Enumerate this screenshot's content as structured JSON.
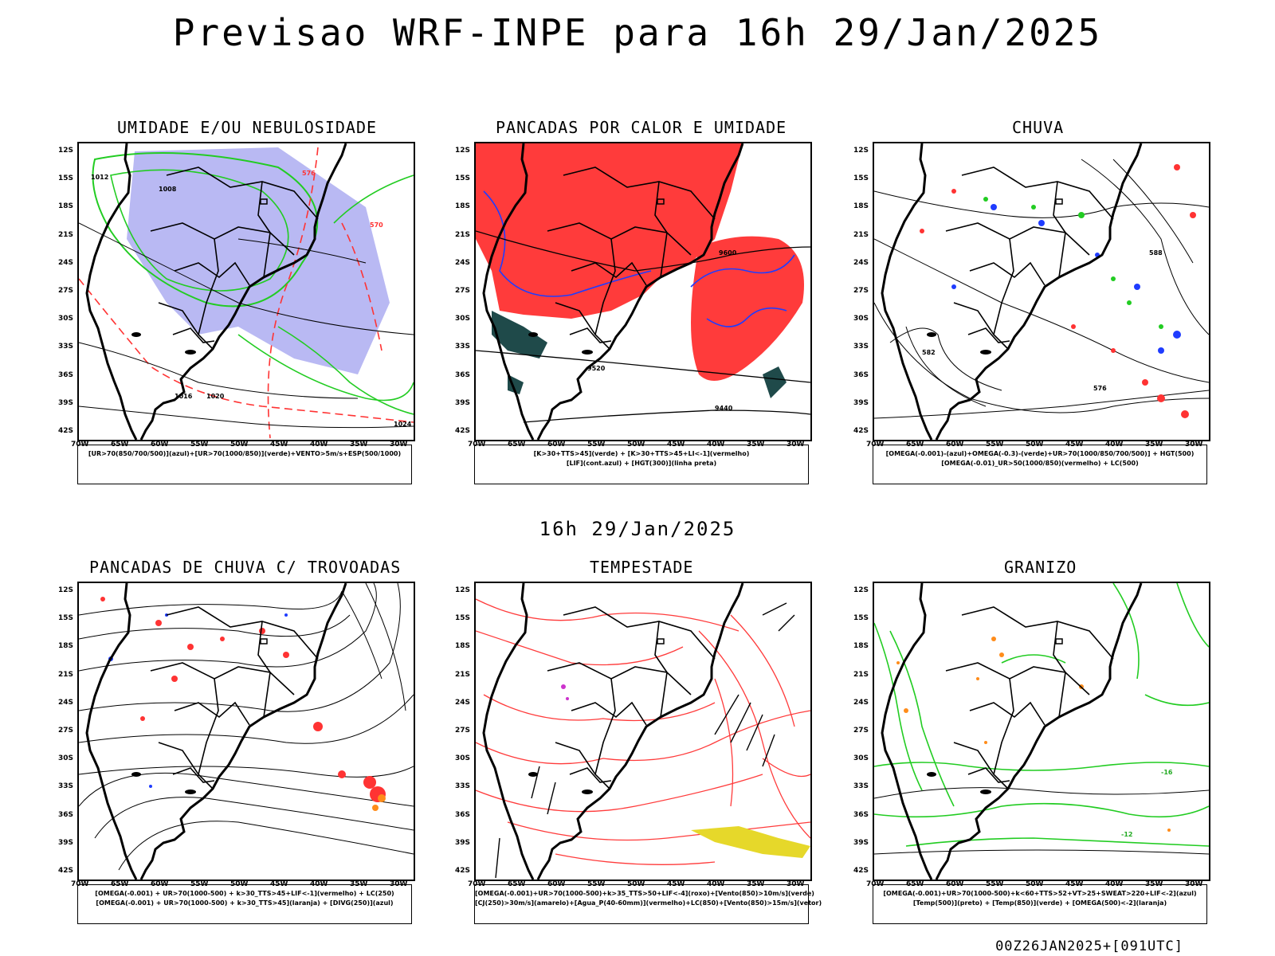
{
  "title": "Previsao WRF-INPE  para 16h 29/Jan/2025",
  "middle_date": "16h 29/Jan/2025",
  "run_stamp": "00Z26JAN2025+[091UTC]",
  "lat_labels": [
    "12S",
    "15S",
    "18S",
    "21S",
    "24S",
    "27S",
    "30S",
    "33S",
    "36S",
    "39S",
    "42S"
  ],
  "lon_labels": [
    "70W",
    "65W",
    "60W",
    "55W",
    "50W",
    "45W",
    "40W",
    "35W",
    "30W"
  ],
  "colors": {
    "green": "#22cc22",
    "red": "#ff3333",
    "blue": "#1f3cff",
    "lavender": "#b9b9f3",
    "teal": "#1f4a4a",
    "orange": "#ff8c1a",
    "yellow": "#e6d82a",
    "purple": "#cc33cc"
  },
  "panels": [
    {
      "title": "UMIDADE E/OU NEBULOSIDADE",
      "legend": [
        "[UR>70(850/700/500)](azul)+[UR>70(1000/850)](verde)+VENTO>5m/s+ESP(500/1000)"
      ],
      "contour_labels": [
        "1008",
        "1012",
        "1016",
        "1020",
        "1024",
        "570",
        "576"
      ]
    },
    {
      "title": "PANCADAS POR CALOR E UMIDADE",
      "legend": [
        "[K>30+TTS>45](verde)  +  [K>30+TTS>45+LI<-1](vermelho)",
        "[LIF](cont.azul)  +  [HGT(300)](linha preta)"
      ],
      "contour_labels": [
        "9600",
        "9520",
        "9440"
      ]
    },
    {
      "title": "CHUVA",
      "legend": [
        "[OMEGA(-0.001)-(azul)+OMEGA(-0.3)-(verde)+UR>70(1000/850/700/500)]  +  HGT(500)",
        "[OMEGA(-0.01)_UR>50(1000/850)(vermelho)  +  LC(500)"
      ],
      "contour_labels": [
        "582",
        "576",
        "588"
      ]
    },
    {
      "title": "PANCADAS DE CHUVA C/ TROVOADAS",
      "legend": [
        "[OMEGA(-0.001)  +  UR>70(1000-500)  +  k>30_TTS>45+LIF<-1](vermelho)  +  LC(250)",
        "[OMEGA(-0.001)  +  UR>70(1000-500)  +  k>30_TTS>45](laranja)  +  [DIVG(250)](azul)"
      ]
    },
    {
      "title": "TEMPESTADE",
      "legend": [
        "[OMEGA(-0.001)+UR>70(1000-500)+k>35_TTS>50+LIF<-4](roxo)+[Vento(850)>10m/s](verde)",
        "[CJ(250)>30m/s](amarelo)+[Agua_P(40-60mm)](vermelho)+LC(850)+[Vento(850)>15m/s](vetor)"
      ]
    },
    {
      "title": "GRANIZO",
      "legend": [
        "[OMEGA(-0.001)+UR>70(1000-500)+k<60+TTS>52+VT>25+SWEAT>220+LIF<-2](azul)",
        "[Temp(500)](preto)  +  [Temp(850)](verde)  +  [OMEGA(500)<-2](laranja)"
      ],
      "contour_labels": [
        "-12",
        "-16"
      ]
    }
  ]
}
